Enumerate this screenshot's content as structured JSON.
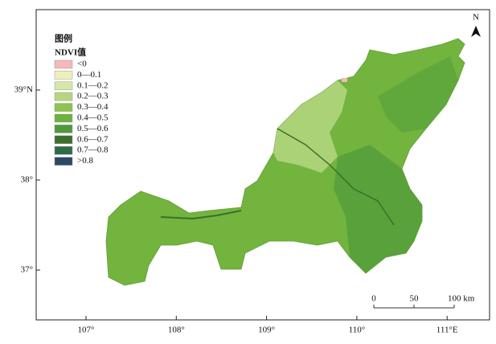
{
  "map": {
    "legend": {
      "title": "图例",
      "subtitle": "NDVI值",
      "items": [
        {
          "label": "<0",
          "color": "#f4b9b9"
        },
        {
          "label": "0—0.1",
          "color": "#eef0b8"
        },
        {
          "label": "0.1—0.2",
          "color": "#d6e8a6"
        },
        {
          "label": "0.2—0.3",
          "color": "#b5d77a"
        },
        {
          "label": "0.3—0.4",
          "color": "#8dc44a"
        },
        {
          "label": "0.4—0.5",
          "color": "#6db23c"
        },
        {
          "label": "0.5—0.6",
          "color": "#4f9a3a"
        },
        {
          "label": "0.6—0.7",
          "color": "#3c6e2c"
        },
        {
          "label": "0.7—0.8",
          "color": "#2f6b48"
        },
        {
          "label": ">0.8",
          "color": "#2b4866"
        }
      ]
    },
    "lon_ticks": [
      {
        "value": 107,
        "label": "107°"
      },
      {
        "value": 108,
        "label": "108°"
      },
      {
        "value": 109,
        "label": "109°"
      },
      {
        "value": 110,
        "label": "110°"
      },
      {
        "value": 111,
        "label": "111°E"
      }
    ],
    "lat_ticks": [
      {
        "value": 39,
        "label": "39°N"
      },
      {
        "value": 38,
        "label": "38°"
      },
      {
        "value": 37,
        "label": "37°"
      }
    ],
    "north": "N",
    "scale_bar": [
      "0",
      "50",
      "100 km"
    ]
  }
}
